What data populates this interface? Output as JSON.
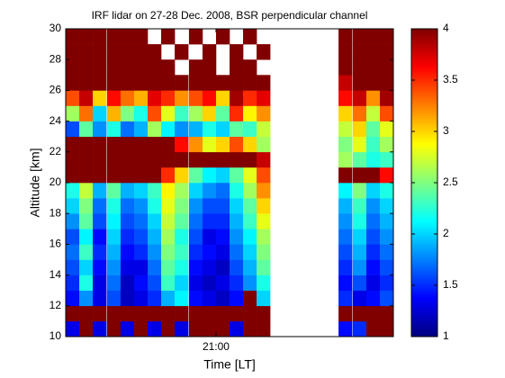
{
  "chart_data": {
    "type": "heatmap",
    "title": "IRF lidar on 27-28 Dec. 2008, BSR perpendicular channel",
    "xlabel": "Time [LT]",
    "ylabel": "Altitude [km]",
    "colormap": "jet",
    "x": [
      19.09,
      19.27,
      19.45,
      19.64,
      19.82,
      20.0,
      20.18,
      20.36,
      20.54,
      20.73,
      20.91,
      21.09,
      21.27,
      21.45,
      21.63,
      21.82,
      22.0,
      22.18,
      22.36,
      22.54,
      22.72,
      22.91,
      23.09,
      23.27
    ],
    "y": [
      10.5,
      11.5,
      12.5,
      13.5,
      14.5,
      15.5,
      16.5,
      17.5,
      18.5,
      19.5,
      20.5,
      21.5,
      22.5,
      23.5,
      24.5,
      25.5,
      26.5,
      27.5,
      28.5,
      29.5
    ],
    "z": [
      [
        1.3,
        4,
        1.3,
        4,
        1.3,
        4,
        1.3,
        4,
        1.3,
        4,
        4,
        4,
        1.3,
        4,
        4,
        null,
        null,
        null,
        null,
        null,
        1.4,
        1.5,
        4,
        4
      ],
      [
        4,
        4,
        4,
        4,
        4,
        4,
        4,
        4,
        4,
        4,
        4,
        4,
        4,
        4,
        4,
        null,
        null,
        null,
        null,
        null,
        4,
        4,
        4,
        4
      ],
      [
        1.4,
        1.8,
        1.3,
        1.6,
        1.2,
        1.3,
        1.5,
        1.9,
        2.1,
        1.4,
        1.3,
        1.2,
        1.4,
        4,
        2.0,
        null,
        null,
        null,
        null,
        null,
        1.5,
        1.3,
        1.4,
        1.6
      ],
      [
        1.5,
        2.2,
        1.3,
        1.7,
        1.2,
        1.4,
        1.6,
        2.3,
        2.0,
        1.3,
        1.2,
        1.3,
        1.5,
        1.8,
        2.2,
        null,
        null,
        null,
        null,
        null,
        1.4,
        1.6,
        1.3,
        1.5
      ],
      [
        1.6,
        2.0,
        1.4,
        1.8,
        1.3,
        1.3,
        1.7,
        2.4,
        2.2,
        1.4,
        1.3,
        1.2,
        1.6,
        1.9,
        2.4,
        null,
        null,
        null,
        null,
        null,
        1.5,
        1.8,
        1.4,
        1.6
      ],
      [
        1.7,
        2.3,
        1.5,
        1.9,
        1.4,
        1.5,
        1.8,
        2.5,
        2.3,
        1.5,
        1.4,
        1.3,
        1.7,
        2.0,
        2.5,
        null,
        null,
        null,
        null,
        null,
        1.6,
        1.9,
        1.5,
        1.7
      ],
      [
        1.6,
        2.1,
        1.4,
        2.0,
        1.5,
        1.6,
        1.9,
        2.6,
        2.2,
        1.6,
        1.3,
        1.4,
        1.8,
        2.1,
        2.6,
        null,
        null,
        null,
        null,
        null,
        1.7,
        2.0,
        1.6,
        1.8
      ],
      [
        1.8,
        2.4,
        1.6,
        2.1,
        1.6,
        1.7,
        2.0,
        2.7,
        2.4,
        1.7,
        1.5,
        1.5,
        1.9,
        2.3,
        2.8,
        null,
        null,
        null,
        null,
        null,
        1.8,
        2.2,
        1.7,
        1.9
      ],
      [
        2.0,
        2.5,
        1.7,
        2.2,
        1.7,
        1.8,
        2.2,
        2.8,
        2.5,
        1.8,
        1.6,
        1.6,
        2.0,
        2.4,
        3.0,
        null,
        null,
        null,
        null,
        null,
        1.9,
        2.3,
        1.8,
        2.0
      ],
      [
        2.2,
        2.7,
        1.9,
        2.4,
        1.9,
        2.0,
        2.3,
        2.9,
        2.6,
        2.0,
        1.8,
        1.7,
        2.2,
        2.6,
        3.2,
        null,
        null,
        null,
        null,
        null,
        2.1,
        2.5,
        2.0,
        2.2
      ],
      [
        4,
        4,
        4,
        4,
        4,
        4,
        4,
        3.5,
        3.0,
        2.4,
        2.1,
        2.0,
        2.4,
        2.8,
        3.4,
        null,
        null,
        null,
        null,
        null,
        4,
        4,
        4,
        3.6
      ],
      [
        4,
        4,
        4,
        4,
        4,
        4,
        4,
        4,
        4,
        4,
        4,
        4,
        4,
        4,
        3.8,
        null,
        null,
        null,
        null,
        null,
        2.6,
        2.4,
        2.2,
        2.3
      ],
      [
        4,
        4,
        4,
        4,
        4,
        4,
        4,
        4,
        3.6,
        3.2,
        2.8,
        3.0,
        3.4,
        3.0,
        2.6,
        null,
        null,
        null,
        null,
        null,
        2.5,
        2.8,
        2.3,
        2.6
      ],
      [
        1.6,
        2.4,
        1.8,
        2.2,
        1.7,
        1.9,
        2.6,
        2.1,
        1.8,
        1.9,
        2.2,
        2.0,
        2.4,
        2.3,
        2.7,
        null,
        null,
        null,
        null,
        null,
        2.7,
        3.0,
        2.4,
        2.8
      ],
      [
        2.6,
        3.3,
        2.0,
        3.1,
        2.5,
        2.2,
        3.4,
        2.8,
        2.3,
        2.6,
        3.0,
        2.4,
        3.5,
        2.9,
        3.2,
        null,
        null,
        null,
        null,
        null,
        3.0,
        3.3,
        2.7,
        3.4
      ],
      [
        3.4,
        3.8,
        3.0,
        3.6,
        3.3,
        3.1,
        3.7,
        3.5,
        3.2,
        3.4,
        3.6,
        3.0,
        3.9,
        3.5,
        3.7,
        null,
        null,
        null,
        null,
        null,
        3.6,
        3.8,
        3.2,
        3.9
      ],
      [
        4,
        4,
        4,
        4,
        4,
        4,
        4,
        4,
        4,
        4,
        4,
        4,
        4,
        4,
        4,
        null,
        null,
        null,
        null,
        null,
        3.8,
        4,
        4,
        4
      ],
      [
        4,
        4,
        4,
        4,
        4,
        4,
        4,
        4,
        null,
        4,
        4,
        null,
        4,
        4,
        null,
        null,
        null,
        null,
        null,
        null,
        4,
        4,
        4,
        4
      ],
      [
        4,
        4,
        4,
        4,
        4,
        4,
        4,
        null,
        4,
        null,
        4,
        null,
        4,
        null,
        4,
        null,
        null,
        null,
        null,
        null,
        4,
        4,
        4,
        4
      ],
      [
        4,
        4,
        4,
        4,
        4,
        4,
        null,
        4,
        null,
        4,
        null,
        4,
        null,
        4,
        null,
        null,
        null,
        null,
        null,
        null,
        4,
        4,
        4,
        4
      ]
    ],
    "xlim": [
      19,
      23.36
    ],
    "ylim": [
      10,
      30
    ],
    "xticks": [
      {
        "value": 21,
        "label": "21:00"
      }
    ],
    "yticks": [
      10,
      12,
      14,
      16,
      18,
      20,
      22,
      24,
      26,
      28,
      30
    ],
    "clim": [
      1,
      4
    ],
    "cticks": [
      1,
      1.5,
      2,
      2.5,
      3,
      3.5,
      4
    ]
  }
}
